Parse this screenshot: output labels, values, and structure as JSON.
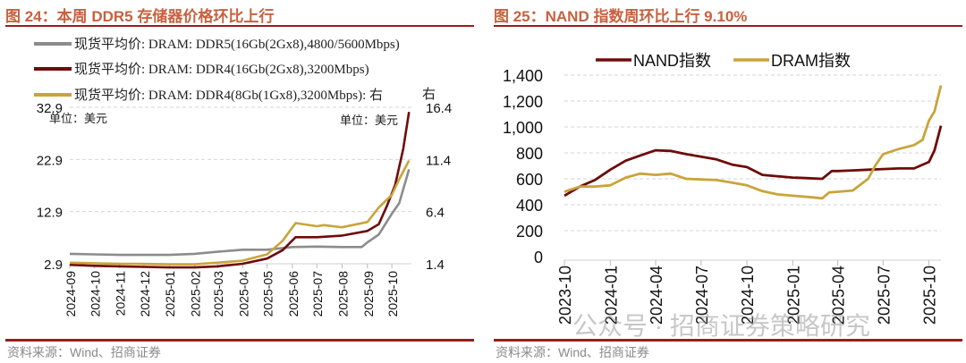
{
  "left_panel": {
    "title": "图 24：本周 DDR5 存储器价格环比上行",
    "source": "资料来源：Wind、招商证券",
    "unit_left": "单位：美元",
    "unit_right": "单位：美元",
    "right_axis_marker": "右"
  },
  "right_panel": {
    "title": "图 25：NAND 指数周环比上行 9.10%",
    "source": "资料来源：Wind、招商证券",
    "watermark": "公众号 · 招商证券策略研究"
  },
  "colors": {
    "title": "#c8603f",
    "rule": "#9b1c1c",
    "gray": "#8c8c8c",
    "darkred": "#6e0b0b",
    "gold": "#c9a43a"
  },
  "chart_data": [
    {
      "type": "line",
      "title": "本周 DDR5 存储器价格环比上行",
      "legend_position": "top-left",
      "grid": true,
      "x_ticks": [
        "2024-09",
        "2024-10",
        "2024-11",
        "2024-12",
        "2025-01",
        "2025-02",
        "2025-03",
        "2025-04",
        "2025-05",
        "2025-06",
        "2025-07",
        "2025-08",
        "2025-09",
        "2025-10"
      ],
      "y_left": {
        "ticks": [
          "2.9",
          "12.9",
          "22.9",
          "32.9"
        ],
        "range": [
          2.9,
          32.9
        ]
      },
      "y_right": {
        "ticks": [
          "1.4",
          "6.4",
          "11.4",
          "16.4"
        ],
        "range": [
          1.4,
          16.4
        ]
      },
      "series": [
        {
          "name": "现货平均价: DRAM: DDR5(16Gb(2Gx8),4800/5600Mbps)",
          "axis": "left",
          "color": "#8c8c8c",
          "points": [
            [
              "2024-09-01",
              4.8
            ],
            [
              "2024-10-01",
              4.7
            ],
            [
              "2024-11-01",
              4.6
            ],
            [
              "2024-12-01",
              4.6
            ],
            [
              "2025-01-01",
              4.6
            ],
            [
              "2025-02-01",
              4.8
            ],
            [
              "2025-03-01",
              5.2
            ],
            [
              "2025-04-01",
              5.6
            ],
            [
              "2025-05-01",
              5.6
            ],
            [
              "2025-06-01",
              6.1
            ],
            [
              "2025-07-01",
              6.2
            ],
            [
              "2025-08-01",
              6.1
            ],
            [
              "2025-08-25",
              6.1
            ],
            [
              "2025-09-01",
              7.0
            ],
            [
              "2025-09-15",
              8.5
            ],
            [
              "2025-10-01",
              12.5
            ],
            [
              "2025-10-10",
              14.5
            ],
            [
              "2025-10-22",
              21.0
            ]
          ]
        },
        {
          "name": "现货平均价: DRAM: DDR4(16Gb(2Gx8),3200Mbps)",
          "axis": "left",
          "color": "#6e0b0b",
          "points": [
            [
              "2024-09-01",
              2.7
            ],
            [
              "2024-10-01",
              2.5
            ],
            [
              "2024-11-01",
              2.4
            ],
            [
              "2024-12-01",
              2.3
            ],
            [
              "2025-01-01",
              2.2
            ],
            [
              "2025-02-01",
              2.2
            ],
            [
              "2025-03-01",
              2.4
            ],
            [
              "2025-04-01",
              2.9
            ],
            [
              "2025-05-01",
              3.9
            ],
            [
              "2025-05-20",
              5.5
            ],
            [
              "2025-06-05",
              8.0
            ],
            [
              "2025-07-01",
              8.0
            ],
            [
              "2025-08-01",
              8.3
            ],
            [
              "2025-09-01",
              9.2
            ],
            [
              "2025-09-15",
              10.5
            ],
            [
              "2025-09-25",
              14.0
            ],
            [
              "2025-10-05",
              18.0
            ],
            [
              "2025-10-15",
              25.0
            ],
            [
              "2025-10-22",
              32.0
            ]
          ]
        },
        {
          "name": "现货平均价: DRAM: DDR4(8Gb(1Gx8),3200Mbps): 右",
          "axis": "right",
          "color": "#c9a43a",
          "points": [
            [
              "2024-09-01",
              1.5
            ],
            [
              "2024-10-01",
              1.45
            ],
            [
              "2024-11-01",
              1.4
            ],
            [
              "2024-12-01",
              1.38
            ],
            [
              "2025-01-01",
              1.35
            ],
            [
              "2025-02-01",
              1.35
            ],
            [
              "2025-03-01",
              1.5
            ],
            [
              "2025-04-01",
              1.7
            ],
            [
              "2025-05-01",
              2.3
            ],
            [
              "2025-05-20",
              3.6
            ],
            [
              "2025-06-05",
              5.3
            ],
            [
              "2025-07-01",
              5.0
            ],
            [
              "2025-07-10",
              5.1
            ],
            [
              "2025-08-01",
              4.9
            ],
            [
              "2025-09-01",
              5.4
            ],
            [
              "2025-09-15",
              6.8
            ],
            [
              "2025-10-01",
              8.0
            ],
            [
              "2025-10-10",
              9.5
            ],
            [
              "2025-10-22",
              11.3
            ]
          ]
        }
      ]
    },
    {
      "type": "line",
      "title": "NAND 指数周环比上行 9.10%",
      "legend_position": "top",
      "grid": true,
      "x_ticks": [
        "2023-10",
        "2024-01",
        "2024-04",
        "2024-07",
        "2024-10",
        "2025-01",
        "2025-04",
        "2025-07",
        "2025-10"
      ],
      "y": {
        "ticks": [
          "0",
          "200",
          "400",
          "600",
          "800",
          "1,000",
          "1,200",
          "1,400"
        ],
        "range": [
          0,
          1400
        ]
      },
      "series": [
        {
          "name": "NAND指数",
          "color": "#6e0b0b",
          "points": [
            [
              "2023-10-01",
              470
            ],
            [
              "2023-11-01",
              540
            ],
            [
              "2023-12-01",
              590
            ],
            [
              "2024-01-01",
              670
            ],
            [
              "2024-02-01",
              740
            ],
            [
              "2024-03-01",
              780
            ],
            [
              "2024-04-01",
              820
            ],
            [
              "2024-05-01",
              815
            ],
            [
              "2024-06-01",
              790
            ],
            [
              "2024-07-01",
              770
            ],
            [
              "2024-08-01",
              750
            ],
            [
              "2024-09-01",
              710
            ],
            [
              "2024-10-01",
              690
            ],
            [
              "2024-11-01",
              630
            ],
            [
              "2024-12-01",
              620
            ],
            [
              "2025-01-01",
              610
            ],
            [
              "2025-02-01",
              605
            ],
            [
              "2025-03-01",
              600
            ],
            [
              "2025-03-20",
              660
            ],
            [
              "2025-04-01",
              660
            ],
            [
              "2025-05-01",
              665
            ],
            [
              "2025-06-01",
              670
            ],
            [
              "2025-07-01",
              675
            ],
            [
              "2025-08-01",
              680
            ],
            [
              "2025-09-01",
              680
            ],
            [
              "2025-10-01",
              730
            ],
            [
              "2025-10-12",
              820
            ],
            [
              "2025-10-25",
              1010
            ]
          ]
        },
        {
          "name": "DRAM指数",
          "color": "#c9a43a",
          "points": [
            [
              "2023-10-01",
              500
            ],
            [
              "2023-11-01",
              540
            ],
            [
              "2023-12-01",
              540
            ],
            [
              "2024-01-01",
              550
            ],
            [
              "2024-02-01",
              610
            ],
            [
              "2024-03-01",
              640
            ],
            [
              "2024-04-01",
              630
            ],
            [
              "2024-05-01",
              640
            ],
            [
              "2024-06-01",
              600
            ],
            [
              "2024-07-01",
              595
            ],
            [
              "2024-08-01",
              590
            ],
            [
              "2024-09-01",
              570
            ],
            [
              "2024-10-01",
              550
            ],
            [
              "2024-11-01",
              505
            ],
            [
              "2024-12-01",
              480
            ],
            [
              "2025-01-01",
              470
            ],
            [
              "2025-02-01",
              460
            ],
            [
              "2025-03-01",
              450
            ],
            [
              "2025-03-15",
              495
            ],
            [
              "2025-04-01",
              500
            ],
            [
              "2025-05-01",
              510
            ],
            [
              "2025-06-01",
              600
            ],
            [
              "2025-06-15",
              700
            ],
            [
              "2025-07-01",
              790
            ],
            [
              "2025-08-01",
              830
            ],
            [
              "2025-09-01",
              860
            ],
            [
              "2025-09-18",
              900
            ],
            [
              "2025-10-01",
              1050
            ],
            [
              "2025-10-12",
              1120
            ],
            [
              "2025-10-25",
              1320
            ]
          ]
        }
      ]
    }
  ]
}
